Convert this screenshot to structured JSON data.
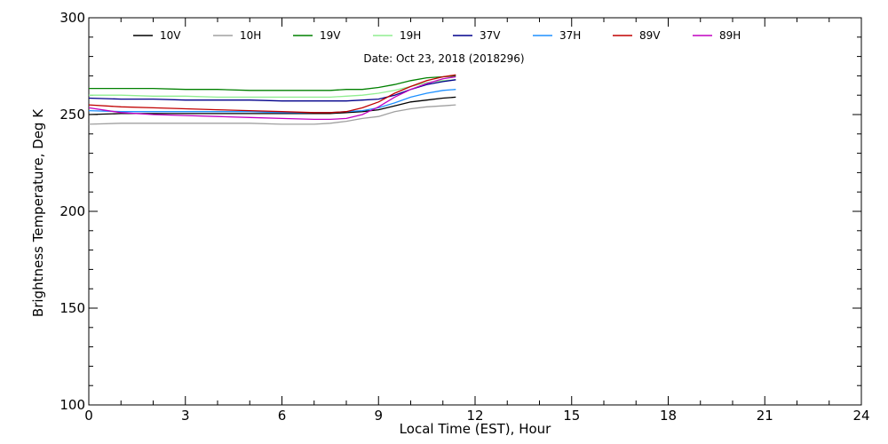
{
  "chart_data": {
    "type": "line",
    "title": "Date: Oct 23, 2018 (2018296)",
    "xlabel": "Local Time (EST), Hour",
    "ylabel": "Brightness Temperature, Deg K",
    "xlim": [
      0,
      24
    ],
    "ylim": [
      100,
      300
    ],
    "xticks": [
      0,
      3,
      6,
      9,
      12,
      15,
      18,
      21,
      24
    ],
    "yticks": [
      100,
      150,
      200,
      250,
      300
    ],
    "grid": false,
    "legend_position": "top",
    "x": [
      0,
      1,
      2,
      3,
      4,
      5,
      6,
      7,
      7.5,
      8,
      8.5,
      9,
      9.5,
      10,
      10.5,
      11,
      11.4
    ],
    "series": [
      {
        "name": "10V",
        "color": "#000000",
        "values": [
          250,
          250.5,
          250.5,
          250.5,
          250.5,
          250.5,
          250.5,
          250.5,
          250.5,
          251,
          251.5,
          252.5,
          254.5,
          256.5,
          257.5,
          258.5,
          259
        ]
      },
      {
        "name": "10H",
        "color": "#a0a0a0",
        "values": [
          245,
          245.5,
          245.5,
          245.5,
          245.5,
          245.5,
          245,
          245,
          245.5,
          246.5,
          248,
          249,
          251.5,
          253,
          254,
          254.5,
          255
        ]
      },
      {
        "name": "19V",
        "color": "#008000",
        "values": [
          263.5,
          263.5,
          263.5,
          263,
          263,
          262.5,
          262.5,
          262.5,
          262.5,
          263,
          263,
          264,
          265.5,
          267.5,
          269,
          269.5,
          270
        ]
      },
      {
        "name": "19H",
        "color": "#90ee90",
        "values": [
          260,
          260,
          259.5,
          259.5,
          259,
          259,
          259,
          259,
          259,
          259.5,
          260,
          261,
          262.5,
          264.5,
          266.5,
          267.5,
          268
        ]
      },
      {
        "name": "37V",
        "color": "#00008b",
        "values": [
          258.5,
          258,
          258,
          257.5,
          257.5,
          257.5,
          257,
          257,
          257,
          257,
          257.5,
          258,
          260,
          263,
          265.5,
          267,
          268
        ]
      },
      {
        "name": "37H",
        "color": "#1e90ff",
        "values": [
          252,
          251.5,
          251.5,
          251.5,
          251.5,
          251.5,
          251,
          251,
          251,
          251.5,
          252,
          253.5,
          256,
          259,
          261,
          262.5,
          263
        ]
      },
      {
        "name": "89V",
        "color": "#c00000",
        "values": [
          255,
          254,
          253.5,
          253,
          252.5,
          252,
          251.5,
          251,
          251,
          251.5,
          253.5,
          256.5,
          261,
          264.5,
          267.5,
          269.5,
          270.5
        ]
      },
      {
        "name": "89H",
        "color": "#c000c0",
        "values": [
          253.5,
          251,
          250,
          249.5,
          249,
          248.5,
          248,
          247.5,
          247.5,
          248,
          250,
          254,
          259,
          263,
          266,
          268.5,
          269.5
        ]
      }
    ]
  }
}
